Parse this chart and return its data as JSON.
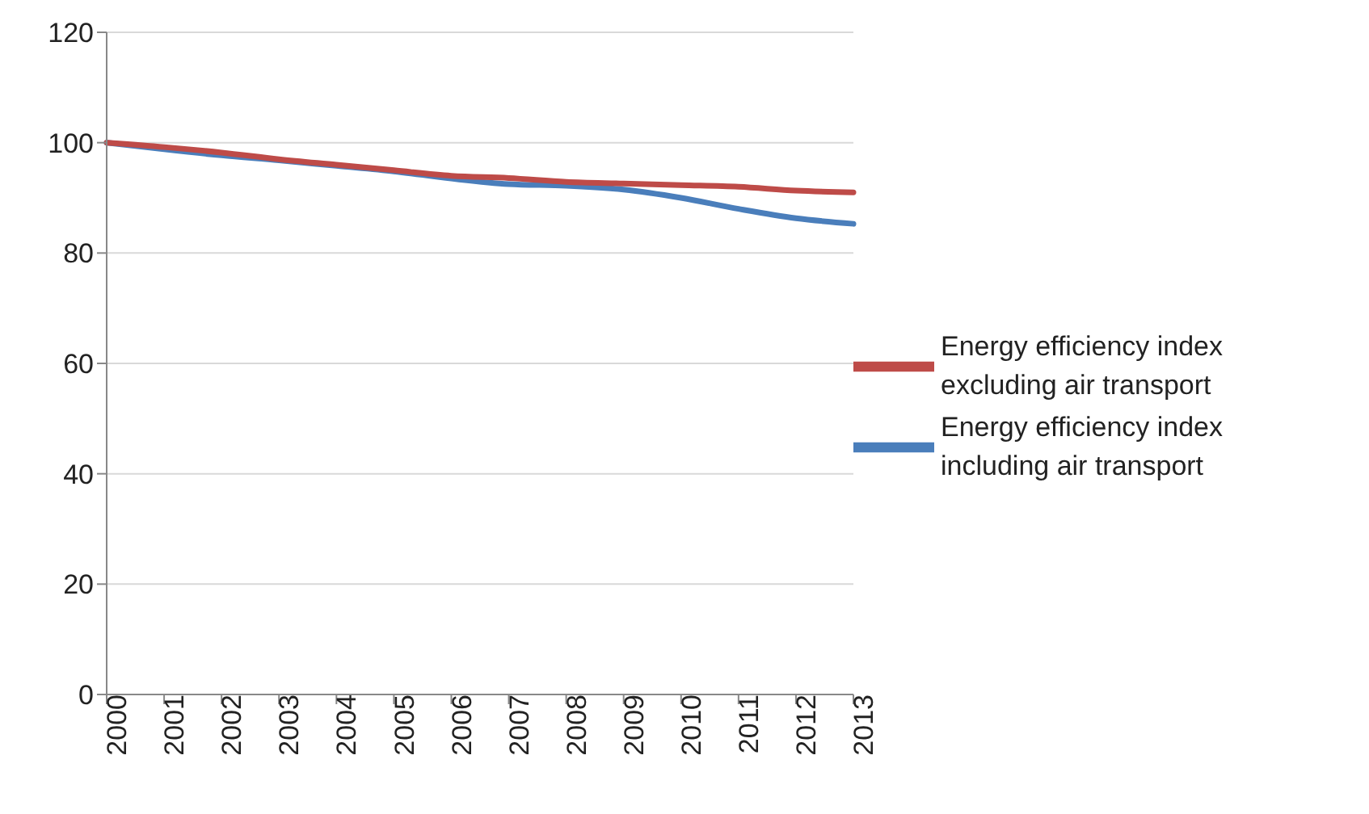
{
  "chart_data": {
    "type": "line",
    "categories": [
      "2000",
      "2001",
      "2002",
      "2003",
      "2004",
      "2005",
      "2006",
      "2007",
      "2008",
      "2009",
      "2010",
      "2011",
      "2012",
      "2013"
    ],
    "series": [
      {
        "name": "Energy efficiency index including air transport",
        "color": "#4a7ebb",
        "values": [
          100,
          98.8,
          97.7,
          96.8,
          95.8,
          94.8,
          93.5,
          92.5,
          92.2,
          91.5,
          90,
          88,
          86.3,
          85.3
        ]
      },
      {
        "name": "Energy efficiency index excluding air transport",
        "color": "#be4b48",
        "values": [
          100,
          99.2,
          98.2,
          97,
          96,
          95,
          94,
          93.6,
          92.9,
          92.6,
          92.3,
          92,
          91.3,
          91
        ]
      }
    ],
    "ylim": [
      0,
      120
    ],
    "yticks": [
      0,
      20,
      40,
      60,
      80,
      100,
      120
    ],
    "grid": "y",
    "legend": "right",
    "marker": "none",
    "line_style": "solid"
  }
}
